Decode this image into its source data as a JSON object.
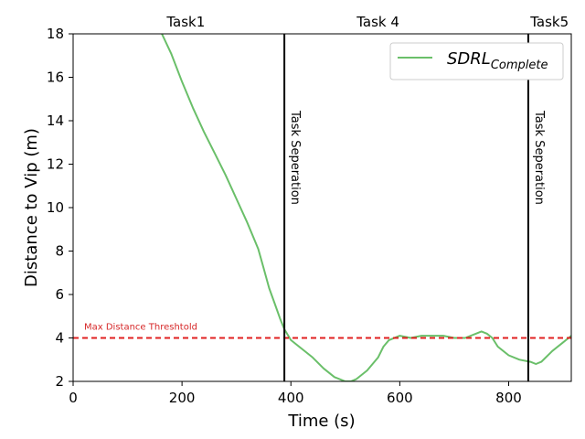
{
  "chart_data": {
    "type": "line",
    "xlabel": "Time (s)",
    "ylabel": "Distance to Vip (m)",
    "xlim": [
      0,
      915
    ],
    "ylim": [
      2,
      18
    ],
    "xticks": [
      0,
      200,
      400,
      600,
      800
    ],
    "yticks": [
      2,
      4,
      6,
      8,
      10,
      12,
      14,
      16,
      18
    ],
    "grid": false,
    "legend_position": "top-right",
    "colors": {
      "series": "#6abf69",
      "threshold": "#e02020",
      "separator": "#000000",
      "threshold_text": "#d62728"
    },
    "series": [
      {
        "name_base": "SDRL",
        "name_sub": "Complete",
        "x": [
          163,
          180,
          200,
          220,
          240,
          260,
          280,
          300,
          320,
          340,
          350,
          360,
          370,
          380,
          388,
          400,
          420,
          440,
          460,
          480,
          500,
          510,
          520,
          540,
          560,
          570,
          580,
          600,
          620,
          640,
          660,
          680,
          700,
          720,
          740,
          750,
          760,
          770,
          780,
          800,
          820,
          840,
          850,
          860,
          880,
          900,
          915
        ],
        "y": [
          18.0,
          17.1,
          15.8,
          14.6,
          13.5,
          12.5,
          11.5,
          10.4,
          9.3,
          8.1,
          7.2,
          6.3,
          5.6,
          4.9,
          4.4,
          3.9,
          3.5,
          3.1,
          2.6,
          2.2,
          2.0,
          2.0,
          2.1,
          2.5,
          3.1,
          3.6,
          3.9,
          4.1,
          4.0,
          4.1,
          4.1,
          4.1,
          4.0,
          4.0,
          4.2,
          4.3,
          4.2,
          4.0,
          3.6,
          3.2,
          3.0,
          2.9,
          2.8,
          2.9,
          3.4,
          3.8,
          4.1
        ]
      }
    ],
    "threshold": {
      "value": 4,
      "label": "Max Distance Threshtold"
    },
    "separators": [
      {
        "x": 388,
        "label": "Task Seperation"
      },
      {
        "x": 836,
        "label": "Task Seperation"
      }
    ],
    "task_labels": [
      {
        "x": 207,
        "text": "Task1"
      },
      {
        "x": 560,
        "text": "Task 4"
      },
      {
        "x": 875,
        "text": "Task5"
      }
    ]
  }
}
